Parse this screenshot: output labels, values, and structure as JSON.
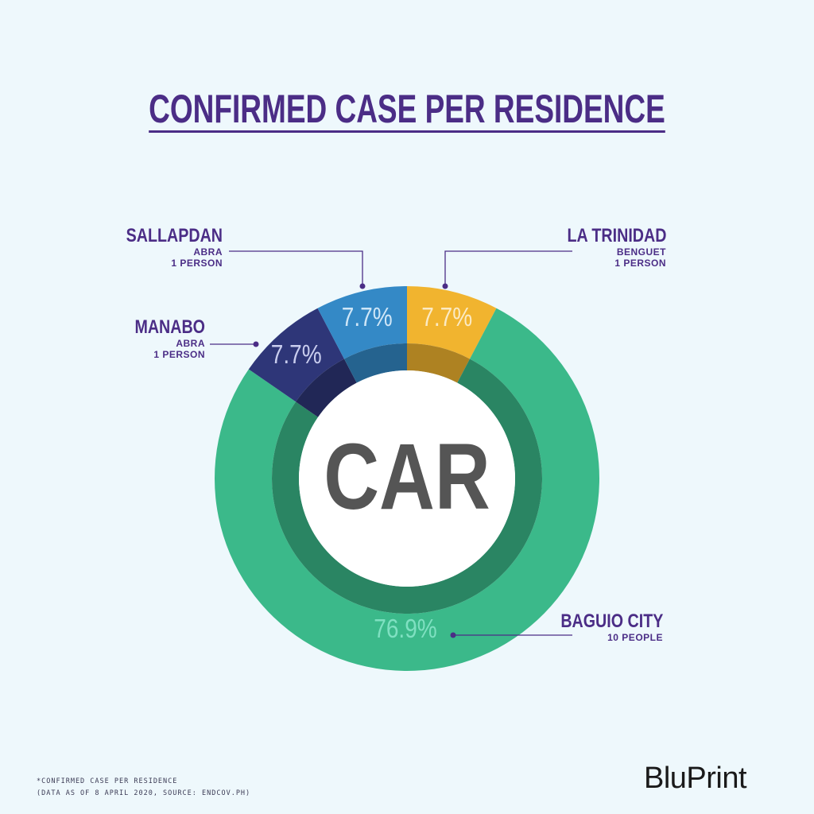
{
  "title": "CONFIRMED CASE PER RESIDENCE",
  "center_label": "CAR",
  "chart_data": {
    "type": "pie",
    "title": "CONFIRMED CASE PER RESIDENCE",
    "center_label": "CAR",
    "slices": [
      {
        "name": "LA TRINIDAD",
        "province": "BENGUET",
        "count_label": "1 PERSON",
        "count": 1,
        "percent": 7.7,
        "percent_label": "7.7%",
        "color": "#f1b42f"
      },
      {
        "name": "BAGUIO CITY",
        "province": "",
        "count_label": "10 PEOPLE",
        "count": 10,
        "percent": 76.9,
        "percent_label": "76.9%",
        "color": "#3bb98a"
      },
      {
        "name": "MANABO",
        "province": "ABRA",
        "count_label": "1 PERSON",
        "count": 1,
        "percent": 7.7,
        "percent_label": "7.7%",
        "color": "#2e3678"
      },
      {
        "name": "SALLAPDAN",
        "province": "ABRA",
        "count_label": "1 PERSON",
        "count": 1,
        "percent": 7.7,
        "percent_label": "7.7%",
        "color": "#3489c6"
      }
    ]
  },
  "labels": {
    "sallapdan": {
      "name": "SALLAPDAN",
      "province": "ABRA",
      "count": "1 PERSON"
    },
    "manabo": {
      "name": "MANABO",
      "province": "ABRA",
      "count": "1 PERSON"
    },
    "la_trinidad": {
      "name": "LA TRINIDAD",
      "province": "BENGUET",
      "count": "1 PERSON"
    },
    "baguio": {
      "name": "BAGUIO CITY",
      "count": "10 PEOPLE"
    }
  },
  "footnote": {
    "line1": "*CONFIRMED CASE PER RESIDENCE",
    "line2": "(DATA AS OF 8 APRIL 2020, SOURCE: ENDCOV.PH)"
  },
  "logo": "BluPrint",
  "colors": {
    "background": "#eef8fc",
    "title": "#4b2d86",
    "center_text": "#555555",
    "center_fill": "#ffffff"
  }
}
